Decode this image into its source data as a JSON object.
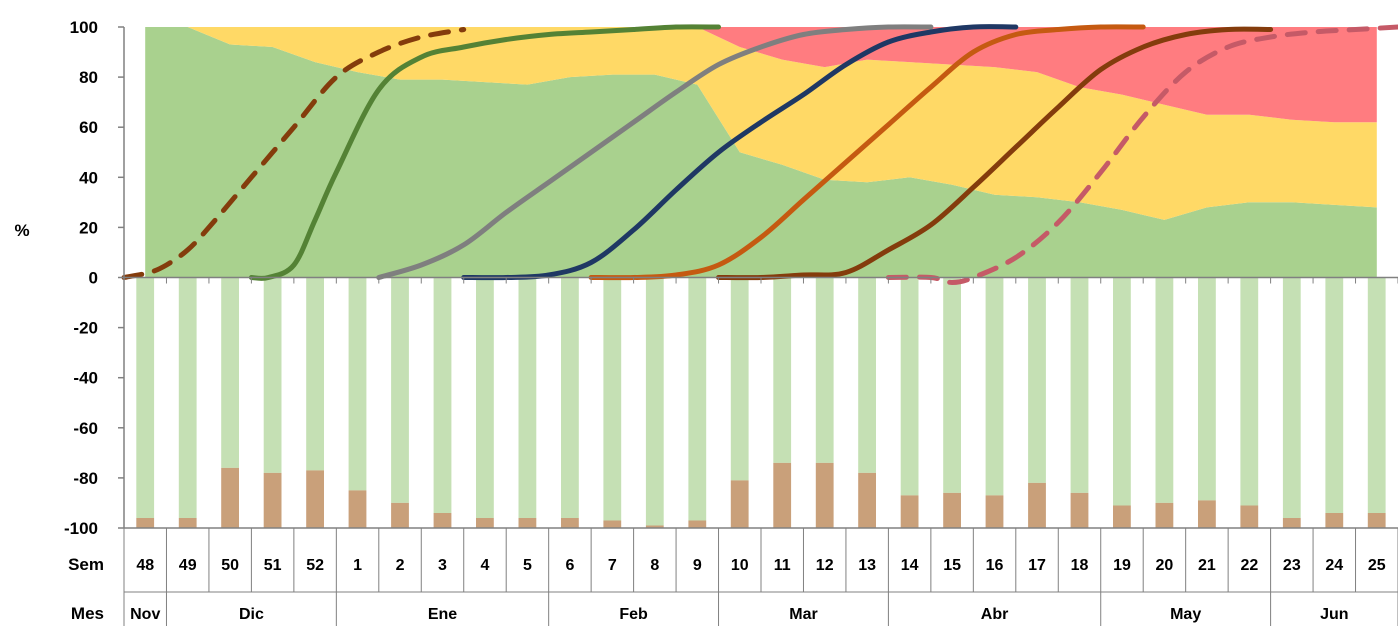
{
  "chart_data": {
    "type": "area",
    "ylabel": "%",
    "ylim": [
      -100,
      100
    ],
    "yticks": [
      100,
      80,
      60,
      40,
      20,
      0,
      -20,
      -40,
      -60,
      -80,
      -100
    ],
    "grid": false,
    "row_labels": {
      "week": "Sem",
      "month": "Mes"
    },
    "weeks": [
      "48",
      "49",
      "50",
      "51",
      "52",
      "1",
      "2",
      "3",
      "4",
      "5",
      "6",
      "7",
      "8",
      "9",
      "10",
      "11",
      "12",
      "13",
      "14",
      "15",
      "16",
      "17",
      "18",
      "19",
      "20",
      "21",
      "22",
      "23",
      "24",
      "25"
    ],
    "months": [
      {
        "label": "Nov",
        "span": 1
      },
      {
        "label": "Dic",
        "span": 4
      },
      {
        "label": "Ene",
        "span": 5
      },
      {
        "label": "Feb",
        "span": 4
      },
      {
        "label": "Mar",
        "span": 4
      },
      {
        "label": "Abr",
        "span": 5
      },
      {
        "label": "May",
        "span": 4
      },
      {
        "label": "Jun",
        "span": 3
      }
    ],
    "colors": {
      "area_green": "#a9d18e",
      "area_yellow": "#ffd966",
      "area_red": "#ff7c80",
      "bar_green": "#c5e0b4",
      "bar_brown": "#c9a07a"
    },
    "stacked_areas": [
      {
        "color_key": "area_green",
        "values": [
          100,
          100,
          93,
          92,
          86,
          82,
          79,
          79,
          78,
          77,
          80,
          81,
          81,
          77,
          50,
          45,
          39,
          38,
          40,
          37,
          33,
          32,
          30,
          27,
          23,
          28,
          30,
          30,
          29,
          28
        ]
      },
      {
        "color_key": "area_yellow",
        "values": [
          0,
          0,
          7,
          8,
          14,
          18,
          21,
          21,
          22,
          23,
          20,
          19,
          19,
          23,
          42,
          42,
          45,
          49,
          46,
          48,
          51,
          50,
          46,
          46,
          46,
          37,
          35,
          33,
          33,
          34
        ]
      },
      {
        "color_key": "area_red",
        "values": [
          0,
          0,
          0,
          0,
          0,
          0,
          0,
          0,
          0,
          0,
          0,
          0,
          0,
          0,
          8,
          13,
          16,
          13,
          14,
          15,
          16,
          18,
          24,
          27,
          31,
          35,
          35,
          37,
          38,
          38
        ]
      }
    ],
    "bars": [
      {
        "color_key": "bar_green",
        "values": [
          96,
          96,
          76,
          78,
          77,
          85,
          90,
          94,
          96,
          96,
          96,
          97,
          99,
          97,
          81,
          74,
          74,
          78,
          87,
          86,
          87,
          82,
          86,
          91,
          90,
          89,
          91,
          96,
          94,
          94
        ]
      },
      {
        "color_key": "bar_brown",
        "values": [
          4,
          4,
          24,
          22,
          23,
          15,
          10,
          6,
          4,
          4,
          4,
          3,
          1,
          3,
          19,
          26,
          26,
          22,
          13,
          14,
          13,
          18,
          14,
          9,
          10,
          11,
          9,
          4,
          6,
          6
        ]
      }
    ],
    "lines": [
      {
        "color": "#843c0c",
        "dashed": true,
        "x": [
          0,
          0.6,
          1,
          1.5,
          2,
          3,
          4,
          5,
          6,
          7,
          8
        ],
        "y": [
          0,
          2,
          5,
          11,
          20,
          40,
          60,
          80,
          90,
          96,
          99
        ]
      },
      {
        "color": "#548235",
        "dashed": false,
        "x": [
          3,
          3.4,
          4,
          4.5,
          5,
          6,
          7,
          8,
          9,
          10,
          11,
          12,
          13,
          14
        ],
        "y": [
          0,
          0,
          5,
          23,
          42,
          75,
          88,
          92,
          95,
          97,
          98,
          99,
          100,
          100
        ]
      },
      {
        "color": "#7f7f7f",
        "dashed": false,
        "x": [
          6,
          7,
          8,
          9,
          10,
          11,
          12,
          13,
          14,
          15,
          16,
          17,
          18,
          19
        ],
        "y": [
          0,
          5,
          13,
          26,
          38,
          50,
          62,
          74,
          85,
          92,
          97,
          99,
          100,
          100
        ]
      },
      {
        "color": "#1f3864",
        "dashed": false,
        "x": [
          8,
          9,
          10,
          11,
          12,
          13,
          14,
          15,
          16,
          17,
          18,
          19,
          20,
          21
        ],
        "y": [
          0,
          0,
          1,
          6,
          19,
          35,
          50,
          62,
          73,
          85,
          94,
          98,
          100,
          100
        ]
      },
      {
        "color": "#c55a11",
        "dashed": false,
        "x": [
          11,
          12,
          13,
          14,
          15,
          16,
          17,
          18,
          19,
          20,
          21,
          22,
          23,
          24
        ],
        "y": [
          0,
          0,
          1,
          5,
          16,
          31,
          46,
          61,
          76,
          90,
          97,
          99,
          100,
          100
        ]
      },
      {
        "color": "#843c0c",
        "dashed": false,
        "x": [
          14,
          15,
          16,
          17,
          18,
          19,
          20,
          21,
          22,
          23,
          24,
          25,
          26,
          27
        ],
        "y": [
          0,
          0,
          1,
          2,
          11,
          21,
          36,
          52,
          68,
          83,
          92,
          97,
          99,
          99
        ]
      },
      {
        "color": "#c55a67",
        "dashed": true,
        "x": [
          18,
          19,
          19.5,
          20,
          21,
          22,
          23,
          24,
          25,
          26,
          27,
          28,
          29,
          30
        ],
        "y": [
          0,
          0,
          -2,
          0,
          8,
          22,
          42,
          64,
          82,
          92,
          96,
          98,
          99,
          100
        ]
      }
    ]
  }
}
